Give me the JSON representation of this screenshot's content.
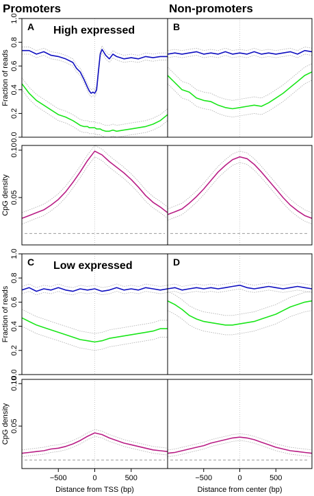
{
  "figure": {
    "column_headers": [
      "Promoters",
      "Non-promoters"
    ],
    "panel_titles": {
      "A": "High expressed",
      "C": "Low expressed"
    },
    "colors": {
      "blue": "#0d0dbf",
      "green": "#19e619",
      "magenta": "#b81c84",
      "band": "#b4b4b4",
      "baseline": "#999999"
    }
  },
  "chart_data": [
    {
      "id": "A",
      "type": "line",
      "title": "High expressed",
      "ylabel": "Fraction of reads",
      "xlim": [
        -1000,
        1000
      ],
      "ylim": [
        0,
        1.0
      ],
      "yticks": [
        0,
        0.2,
        0.4,
        0.6,
        0.8,
        1.0
      ],
      "ytick_labels": [
        "0.0",
        "0.2",
        "0.4",
        "0.6",
        "0.8",
        "1.0"
      ],
      "x": [
        -1000,
        -900,
        -800,
        -700,
        -600,
        -500,
        -400,
        -300,
        -250,
        -200,
        -150,
        -100,
        -75,
        -50,
        -25,
        0,
        25,
        50,
        75,
        100,
        150,
        200,
        250,
        300,
        400,
        500,
        600,
        700,
        800,
        900,
        1000
      ],
      "series": [
        {
          "color": "blue",
          "values": [
            0.73,
            0.73,
            0.7,
            0.72,
            0.69,
            0.68,
            0.66,
            0.63,
            0.58,
            0.55,
            0.49,
            0.42,
            0.39,
            0.37,
            0.38,
            0.37,
            0.4,
            0.55,
            0.7,
            0.74,
            0.69,
            0.66,
            0.7,
            0.68,
            0.66,
            0.67,
            0.66,
            0.68,
            0.67,
            0.68,
            0.68
          ],
          "band": 0.03
        },
        {
          "color": "green",
          "values": [
            0.45,
            0.37,
            0.31,
            0.27,
            0.23,
            0.19,
            0.17,
            0.14,
            0.12,
            0.1,
            0.09,
            0.09,
            0.08,
            0.08,
            0.08,
            0.08,
            0.07,
            0.07,
            0.07,
            0.06,
            0.05,
            0.05,
            0.06,
            0.05,
            0.06,
            0.07,
            0.08,
            0.09,
            0.11,
            0.14,
            0.19
          ],
          "band": 0.05
        }
      ]
    },
    {
      "id": "B",
      "type": "line",
      "xlim": [
        -1000,
        1000
      ],
      "ylim": [
        0,
        1.0
      ],
      "x": [
        -1000,
        -900,
        -800,
        -700,
        -600,
        -500,
        -400,
        -300,
        -200,
        -100,
        0,
        100,
        200,
        300,
        400,
        500,
        600,
        700,
        800,
        900,
        1000
      ],
      "series": [
        {
          "color": "blue",
          "values": [
            0.7,
            0.71,
            0.7,
            0.71,
            0.72,
            0.7,
            0.71,
            0.7,
            0.72,
            0.7,
            0.71,
            0.7,
            0.72,
            0.7,
            0.71,
            0.7,
            0.71,
            0.72,
            0.7,
            0.73,
            0.72
          ],
          "band": 0.03
        },
        {
          "color": "green",
          "values": [
            0.52,
            0.46,
            0.4,
            0.38,
            0.33,
            0.31,
            0.3,
            0.27,
            0.25,
            0.24,
            0.25,
            0.26,
            0.27,
            0.26,
            0.29,
            0.33,
            0.37,
            0.42,
            0.47,
            0.52,
            0.55
          ],
          "band": 0.07
        }
      ]
    },
    {
      "id": "A-cpg",
      "type": "line",
      "ylabel": "CpG density",
      "xlim": [
        -1000,
        1000
      ],
      "ylim": [
        0,
        0.105
      ],
      "yticks": [
        0.05,
        0.1
      ],
      "ytick_labels": [
        "0.05",
        "0.10"
      ],
      "baseline": 0.012,
      "x": [
        -1000,
        -900,
        -800,
        -700,
        -600,
        -500,
        -400,
        -300,
        -200,
        -100,
        0,
        100,
        200,
        300,
        400,
        500,
        600,
        700,
        800,
        900,
        1000
      ],
      "series": [
        {
          "color": "magenta",
          "values": [
            0.028,
            0.031,
            0.034,
            0.037,
            0.042,
            0.048,
            0.056,
            0.066,
            0.077,
            0.089,
            0.099,
            0.095,
            0.088,
            0.082,
            0.076,
            0.069,
            0.061,
            0.052,
            0.045,
            0.04,
            0.034
          ],
          "band": 0.006
        }
      ]
    },
    {
      "id": "B-cpg",
      "type": "line",
      "xlim": [
        -1000,
        1000
      ],
      "ylim": [
        0,
        0.105
      ],
      "baseline": 0.012,
      "x": [
        -1000,
        -900,
        -800,
        -700,
        -600,
        -500,
        -400,
        -300,
        -200,
        -100,
        0,
        100,
        200,
        300,
        400,
        500,
        600,
        700,
        800,
        900,
        1000
      ],
      "series": [
        {
          "color": "magenta",
          "values": [
            0.032,
            0.035,
            0.038,
            0.044,
            0.051,
            0.059,
            0.068,
            0.077,
            0.084,
            0.09,
            0.093,
            0.091,
            0.085,
            0.077,
            0.068,
            0.059,
            0.05,
            0.042,
            0.036,
            0.031,
            0.028
          ],
          "band": 0.006
        }
      ]
    },
    {
      "id": "C",
      "type": "line",
      "title": "Low expressed",
      "ylabel": "Fraction of reads",
      "xlim": [
        -1000,
        1000
      ],
      "ylim": [
        0,
        1.0
      ],
      "yticks": [
        0,
        0.2,
        0.4,
        0.6,
        0.8,
        1.0
      ],
      "ytick_labels": [
        "0.0",
        "0.2",
        "0.4",
        "0.6",
        "0.8",
        "1.0"
      ],
      "x": [
        -1000,
        -900,
        -800,
        -700,
        -600,
        -500,
        -400,
        -300,
        -200,
        -100,
        0,
        100,
        200,
        300,
        400,
        500,
        600,
        700,
        800,
        900,
        1000
      ],
      "series": [
        {
          "color": "blue",
          "values": [
            0.7,
            0.72,
            0.69,
            0.71,
            0.7,
            0.72,
            0.7,
            0.69,
            0.71,
            0.7,
            0.71,
            0.69,
            0.7,
            0.72,
            0.7,
            0.71,
            0.7,
            0.72,
            0.71,
            0.7,
            0.71
          ],
          "band": 0.03
        },
        {
          "color": "green",
          "values": [
            0.47,
            0.44,
            0.41,
            0.39,
            0.37,
            0.35,
            0.33,
            0.31,
            0.29,
            0.28,
            0.27,
            0.28,
            0.3,
            0.31,
            0.32,
            0.33,
            0.34,
            0.35,
            0.36,
            0.38,
            0.38
          ],
          "band": 0.07
        }
      ]
    },
    {
      "id": "D",
      "type": "line",
      "xlim": [
        -1000,
        1000
      ],
      "ylim": [
        0,
        1.0
      ],
      "x": [
        -1000,
        -900,
        -800,
        -700,
        -600,
        -500,
        -400,
        -300,
        -200,
        -100,
        0,
        100,
        200,
        300,
        400,
        500,
        600,
        700,
        800,
        900,
        1000
      ],
      "series": [
        {
          "color": "blue",
          "values": [
            0.71,
            0.72,
            0.7,
            0.71,
            0.72,
            0.71,
            0.72,
            0.71,
            0.72,
            0.73,
            0.74,
            0.72,
            0.71,
            0.72,
            0.73,
            0.72,
            0.71,
            0.72,
            0.73,
            0.72,
            0.71
          ],
          "band": 0.03
        },
        {
          "color": "green",
          "values": [
            0.61,
            0.58,
            0.54,
            0.49,
            0.46,
            0.44,
            0.43,
            0.42,
            0.41,
            0.41,
            0.42,
            0.43,
            0.44,
            0.46,
            0.48,
            0.5,
            0.53,
            0.56,
            0.58,
            0.6,
            0.61
          ],
          "band": 0.08
        }
      ]
    },
    {
      "id": "C-cpg",
      "type": "line",
      "ylabel": "CpG density",
      "xlabel": "Distance from TSS (bp)",
      "xlim": [
        -1000,
        1000
      ],
      "ylim": [
        0,
        0.105
      ],
      "yticks": [
        0.05,
        0.1
      ],
      "ytick_labels": [
        "0.05",
        "0.10"
      ],
      "xticks": [
        -500,
        0,
        500
      ],
      "xtick_labels": [
        "−500",
        "0",
        "500"
      ],
      "baseline": 0.01,
      "x": [
        -1000,
        -900,
        -800,
        -700,
        -600,
        -500,
        -400,
        -300,
        -200,
        -100,
        0,
        100,
        200,
        300,
        400,
        500,
        600,
        700,
        800,
        900,
        1000
      ],
      "series": [
        {
          "color": "magenta",
          "values": [
            0.018,
            0.019,
            0.02,
            0.021,
            0.023,
            0.024,
            0.026,
            0.029,
            0.033,
            0.038,
            0.042,
            0.04,
            0.036,
            0.033,
            0.03,
            0.028,
            0.026,
            0.024,
            0.022,
            0.021,
            0.02
          ],
          "band": 0.004
        }
      ]
    },
    {
      "id": "D-cpg",
      "type": "line",
      "xlabel": "Distance from center (bp)",
      "xlim": [
        -1000,
        1000
      ],
      "ylim": [
        0,
        0.105
      ],
      "xticks": [
        -500,
        0,
        500
      ],
      "xtick_labels": [
        "−500",
        "0",
        "500"
      ],
      "baseline": 0.01,
      "x": [
        -1000,
        -900,
        -800,
        -700,
        -600,
        -500,
        -400,
        -300,
        -200,
        -100,
        0,
        100,
        200,
        300,
        400,
        500,
        600,
        700,
        800,
        900,
        1000
      ],
      "series": [
        {
          "color": "magenta",
          "values": [
            0.018,
            0.019,
            0.021,
            0.023,
            0.025,
            0.027,
            0.03,
            0.032,
            0.034,
            0.036,
            0.037,
            0.036,
            0.034,
            0.031,
            0.028,
            0.025,
            0.023,
            0.021,
            0.02,
            0.019,
            0.018
          ],
          "band": 0.004
        }
      ]
    }
  ]
}
